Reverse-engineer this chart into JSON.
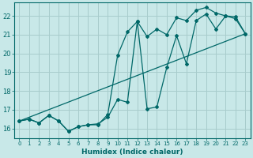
{
  "xlabel": "Humidex (Indice chaleur)",
  "ylabel": "",
  "bg_color": "#c8e8e8",
  "grid_color": "#a8cccc",
  "line_color": "#006868",
  "xlim": [
    -0.5,
    23.5
  ],
  "ylim": [
    15.5,
    22.7
  ],
  "yticks": [
    16,
    17,
    18,
    19,
    20,
    21,
    22
  ],
  "xticks": [
    0,
    1,
    2,
    3,
    4,
    5,
    6,
    7,
    8,
    9,
    10,
    11,
    12,
    13,
    14,
    15,
    16,
    17,
    18,
    19,
    20,
    21,
    22,
    23
  ],
  "line1_x": [
    0,
    1,
    2,
    3,
    4,
    5,
    6,
    7,
    8,
    9,
    10,
    11,
    12,
    13,
    14,
    15,
    16,
    17,
    18,
    19,
    20,
    21,
    22,
    23
  ],
  "line1_y": [
    16.4,
    16.5,
    16.3,
    16.7,
    16.4,
    15.85,
    16.1,
    16.2,
    16.2,
    16.75,
    19.9,
    21.15,
    21.7,
    20.9,
    21.3,
    21.0,
    21.9,
    21.75,
    22.3,
    22.45,
    22.15,
    22.0,
    21.85,
    21.05
  ],
  "line2_x": [
    0,
    1,
    2,
    3,
    4,
    5,
    6,
    7,
    8,
    9,
    10,
    11,
    12,
    13,
    14,
    15,
    16,
    17,
    18,
    19,
    20,
    21,
    22,
    23
  ],
  "line2_y": [
    16.4,
    16.5,
    16.3,
    16.7,
    16.4,
    15.85,
    16.1,
    16.2,
    16.25,
    16.6,
    17.55,
    17.4,
    21.7,
    17.05,
    17.15,
    19.25,
    20.95,
    19.45,
    21.75,
    22.1,
    21.3,
    22.0,
    21.95,
    21.05
  ],
  "line3_x": [
    0,
    23
  ],
  "line3_y": [
    16.4,
    21.05
  ]
}
